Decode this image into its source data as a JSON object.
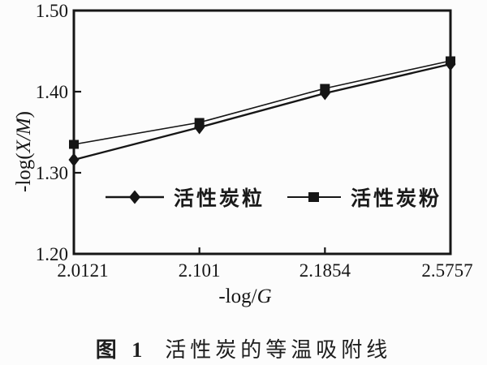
{
  "figure": {
    "caption_label": "图 1",
    "caption_text": "活性炭的等温吸附线"
  },
  "labels": {
    "ylabel_fn": "-log(",
    "ylabel_var": "X/M",
    "ylabel_close": ")",
    "xlabel_fn": "-log/",
    "xlabel_var": "G"
  },
  "chart_data": {
    "type": "line",
    "title": "",
    "xlabel": "-log/G",
    "ylabel": "-log(X/M)",
    "categories": [
      "2.0121",
      "2.101",
      "2.1854",
      "2.5757"
    ],
    "x_axis_spacing": "categorical-even",
    "yticks": [
      "1.50",
      "1.40",
      "1.30",
      "1.20"
    ],
    "ylim": [
      1.2,
      1.5
    ],
    "grid": false,
    "legend_position": "inside bottom-left",
    "line_color": "#161616",
    "series": [
      {
        "name": "活性炭粒",
        "marker": "diamond",
        "values": [
          1.316,
          1.356,
          1.398,
          1.434
        ]
      },
      {
        "name": "活性炭粉",
        "marker": "square",
        "values": [
          1.335,
          1.362,
          1.404,
          1.438
        ]
      }
    ]
  }
}
